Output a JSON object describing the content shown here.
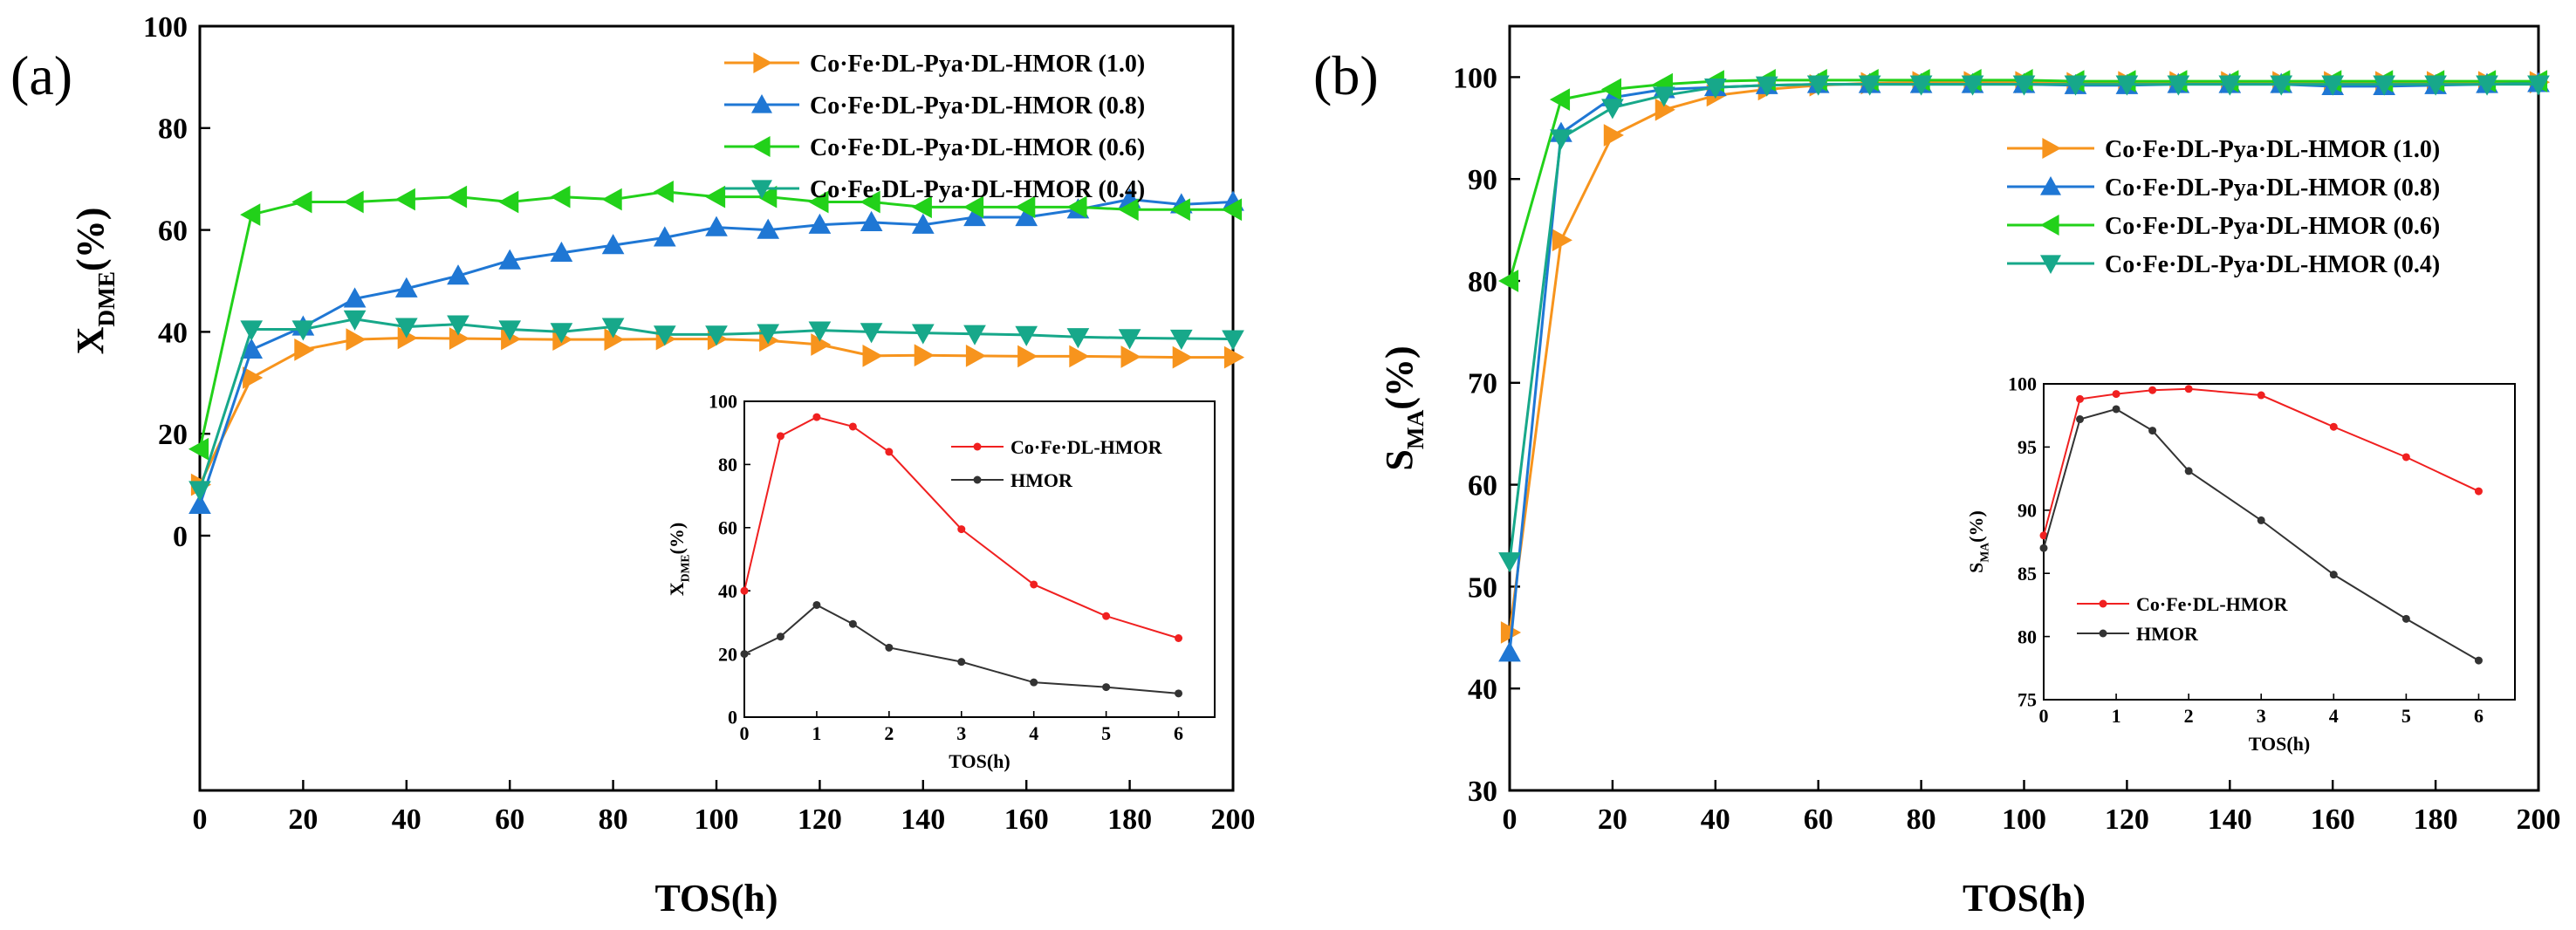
{
  "chart_data": [
    {
      "type": "line",
      "panel_label": "(a)",
      "xlabel": "TOS(h)",
      "ylabel_main": "X",
      "ylabel_sub": "DME",
      "ylabel_suffix": "(%)",
      "xlim": [
        0,
        200
      ],
      "ylim": [
        -50,
        100
      ],
      "x_ticks": [
        0,
        20,
        40,
        60,
        80,
        100,
        120,
        140,
        160,
        180,
        200
      ],
      "y_ticks": [
        0,
        20,
        40,
        60,
        80,
        100
      ],
      "legend_position": "top-right",
      "series": [
        {
          "name": "Co·Fe·DL-Pya·DL-HMOR (1.0)",
          "color": "#f7941d",
          "marker": "triangle-right",
          "x": [
            0,
            10,
            20,
            30,
            40,
            50,
            60,
            70,
            80,
            90,
            100,
            110,
            120,
            130,
            140,
            150,
            160,
            170,
            180,
            190,
            200
          ],
          "y": [
            10,
            31,
            36.5,
            38.5,
            38.8,
            38.7,
            38.6,
            38.5,
            38.5,
            38.6,
            38.6,
            38.3,
            37.5,
            35.3,
            35.4,
            35.3,
            35.2,
            35.2,
            35.1,
            35.0,
            35.0
          ]
        },
        {
          "name": "Co·Fe·DL-Pya·DL-HMOR (0.8)",
          "color": "#1f77d4",
          "marker": "triangle-up",
          "x": [
            0,
            10,
            20,
            30,
            40,
            50,
            60,
            70,
            80,
            90,
            100,
            110,
            120,
            130,
            140,
            150,
            160,
            170,
            180,
            190,
            200
          ],
          "y": [
            6,
            36.5,
            41,
            46.5,
            48.5,
            51,
            54,
            55.5,
            57,
            58.5,
            60.5,
            60,
            61,
            61.5,
            61,
            62.5,
            62.5,
            64,
            66,
            65,
            65.5
          ]
        },
        {
          "name": "Co·Fe·DL-Pya·DL-HMOR (0.6)",
          "color": "#22d11a",
          "marker": "triangle-left",
          "x": [
            0,
            10,
            20,
            30,
            40,
            50,
            60,
            70,
            80,
            90,
            100,
            110,
            120,
            130,
            140,
            150,
            160,
            170,
            180,
            190,
            200
          ],
          "y": [
            17,
            63,
            65.5,
            65.5,
            66,
            66.5,
            65.5,
            66.5,
            66,
            67.5,
            66.5,
            66.5,
            65.5,
            65.5,
            64.5,
            64.5,
            64.5,
            64.5,
            64,
            64,
            64
          ]
        },
        {
          "name": "Co·Fe·DL-Pya·DL-HMOR (0.4)",
          "color": "#17a88a",
          "marker": "triangle-down",
          "x": [
            0,
            10,
            20,
            30,
            40,
            50,
            60,
            70,
            80,
            90,
            100,
            110,
            120,
            130,
            140,
            150,
            160,
            170,
            180,
            190,
            200
          ],
          "y": [
            9,
            40.5,
            40.5,
            42.5,
            41,
            41.5,
            40.5,
            40,
            41,
            39.5,
            39.5,
            39.8,
            40.3,
            40,
            39.8,
            39.6,
            39.4,
            39,
            38.8,
            38.7,
            38.6
          ]
        }
      ],
      "inset": {
        "type": "line",
        "xlabel": "TOS(h)",
        "ylabel_main": "X",
        "ylabel_sub": "DME",
        "ylabel_suffix": "(%)",
        "xlim": [
          0,
          6.5
        ],
        "ylim": [
          0,
          100
        ],
        "x_ticks": [
          0,
          1,
          2,
          3,
          4,
          5,
          6
        ],
        "y_ticks": [
          0,
          20,
          40,
          60,
          80,
          100
        ],
        "legend_position": "top-right",
        "series": [
          {
            "name": "Co·Fe·DL-HMOR",
            "color": "#f02020",
            "x": [
              0,
              0.5,
              1,
              1.5,
              2,
              3,
              4,
              5,
              6
            ],
            "y": [
              40,
              89,
              95,
              92,
              84,
              59.5,
              42,
              32,
              25
            ]
          },
          {
            "name": "HMOR",
            "color": "#333333",
            "x": [
              0,
              0.5,
              1,
              1.5,
              2,
              3,
              4,
              5,
              6
            ],
            "y": [
              20,
              25.5,
              35.5,
              29.5,
              22,
              17.5,
              11,
              9.5,
              7.5
            ]
          }
        ]
      }
    },
    {
      "type": "line",
      "panel_label": "(b)",
      "xlabel": "TOS(h)",
      "ylabel_main": "S",
      "ylabel_sub": "MA",
      "ylabel_suffix": "(%)",
      "xlim": [
        0,
        200
      ],
      "ylim": [
        30,
        105
      ],
      "x_ticks": [
        0,
        20,
        40,
        60,
        80,
        100,
        120,
        140,
        160,
        180,
        200
      ],
      "y_ticks": [
        30,
        40,
        50,
        60,
        70,
        80,
        90,
        100
      ],
      "legend_position": "upper-right",
      "series": [
        {
          "name": "Co·Fe·DL-Pya·DL-HMOR (1.0)",
          "color": "#f7941d",
          "marker": "triangle-right",
          "x": [
            0,
            10,
            20,
            30,
            40,
            50,
            60,
            70,
            80,
            90,
            100,
            110,
            120,
            130,
            140,
            150,
            160,
            170,
            180,
            190,
            200
          ],
          "y": [
            45.5,
            84,
            94.3,
            96.8,
            98.2,
            98.8,
            99.2,
            99.4,
            99.5,
            99.5,
            99.5,
            99.4,
            99.5,
            99.5,
            99.5,
            99.5,
            99.5,
            99.5,
            99.5,
            99.5,
            99.5
          ]
        },
        {
          "name": "Co·Fe·DL-Pya·DL-HMOR (0.8)",
          "color": "#1f77d4",
          "marker": "triangle-up",
          "x": [
            0,
            10,
            20,
            30,
            40,
            50,
            60,
            70,
            80,
            90,
            100,
            110,
            120,
            130,
            140,
            150,
            160,
            170,
            180,
            190,
            200
          ],
          "y": [
            43.5,
            94.5,
            98,
            98.8,
            99,
            99.2,
            99.3,
            99.3,
            99.3,
            99.3,
            99.3,
            99.2,
            99.2,
            99.3,
            99.3,
            99.3,
            99.1,
            99.1,
            99.2,
            99.3,
            99.4
          ]
        },
        {
          "name": "Co·Fe·DL-Pya·DL-HMOR (0.6)",
          "color": "#22d11a",
          "marker": "triangle-left",
          "x": [
            0,
            10,
            20,
            30,
            40,
            50,
            60,
            70,
            80,
            90,
            100,
            110,
            120,
            130,
            140,
            150,
            160,
            170,
            180,
            190,
            200
          ],
          "y": [
            80,
            97.8,
            98.8,
            99.3,
            99.6,
            99.7,
            99.7,
            99.7,
            99.7,
            99.7,
            99.7,
            99.6,
            99.6,
            99.6,
            99.6,
            99.6,
            99.6,
            99.6,
            99.6,
            99.6,
            99.6
          ]
        },
        {
          "name": "Co·Fe·DL-Pya·DL-HMOR (0.4)",
          "color": "#17a88a",
          "marker": "triangle-down",
          "x": [
            0,
            10,
            20,
            30,
            40,
            50,
            60,
            70,
            80,
            90,
            100,
            110,
            120,
            130,
            140,
            150,
            160,
            170,
            180,
            190,
            200
          ],
          "y": [
            52.5,
            94,
            97,
            98.2,
            99,
            99.2,
            99.3,
            99.3,
            99.3,
            99.3,
            99.3,
            99.3,
            99.3,
            99.3,
            99.3,
            99.3,
            99.3,
            99.3,
            99.3,
            99.3,
            99.3
          ]
        }
      ],
      "inset": {
        "type": "line",
        "xlabel": "TOS(h)",
        "ylabel_main": "S",
        "ylabel_sub": "MA",
        "ylabel_suffix": "(%)",
        "xlim": [
          0,
          6.5
        ],
        "ylim": [
          75,
          100
        ],
        "x_ticks": [
          0,
          1,
          2,
          3,
          4,
          5,
          6
        ],
        "y_ticks": [
          75,
          80,
          85,
          90,
          95,
          100
        ],
        "legend_position": "bottom-left",
        "series": [
          {
            "name": "Co·Fe·DL-HMOR",
            "color": "#f02020",
            "x": [
              0,
              0.5,
              1,
              1.5,
              2,
              3,
              4,
              5,
              6
            ],
            "y": [
              88,
              98.8,
              99.2,
              99.5,
              99.6,
              99.1,
              96.6,
              94.2,
              91.5
            ]
          },
          {
            "name": "HMOR",
            "color": "#333333",
            "x": [
              0,
              0.5,
              1,
              1.5,
              2,
              3,
              4,
              5,
              6
            ],
            "y": [
              87,
              97.2,
              98,
              96.3,
              93.1,
              89.2,
              84.9,
              81.4,
              78.1
            ]
          }
        ]
      }
    }
  ]
}
